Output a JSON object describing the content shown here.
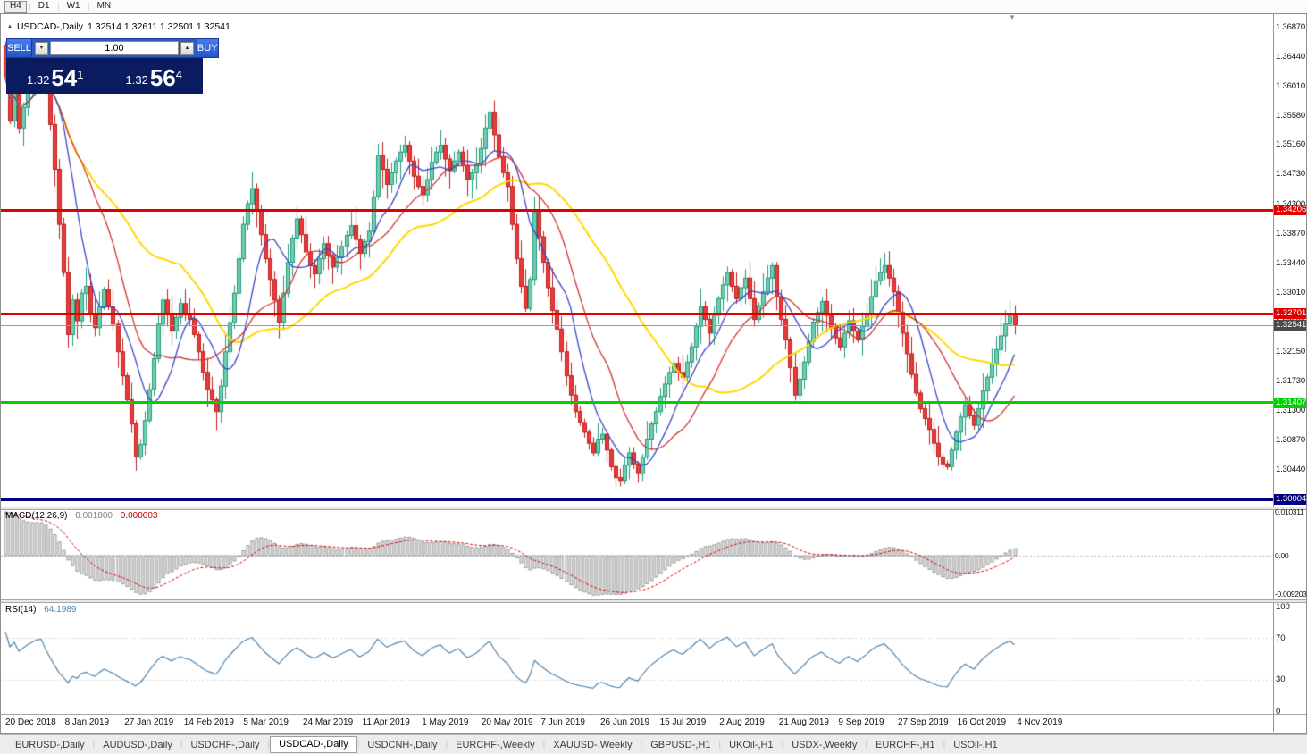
{
  "toolbar": {
    "timeframes": [
      "H4",
      "D1",
      "W1",
      "MN"
    ],
    "active": "H4"
  },
  "window": {
    "title_symbol": "USDCAD-,Daily",
    "ohlc_text": "1.32514 1.32611 1.32501 1.32541"
  },
  "icons": {
    "collapse_triangle": "▲",
    "shift_marker": "▼",
    "volume_down": "▼",
    "volume_up": "▲"
  },
  "trade_panel": {
    "sell_label": "SELL",
    "buy_label": "BUY",
    "volume": "1.00",
    "bid_big": "1.32",
    "bid_mid": "54",
    "bid_sup": "1",
    "ask_big": "1.32",
    "ask_mid": "56",
    "ask_sup": "4"
  },
  "price_axis": {
    "labels": [
      "1.36870",
      "1.36440",
      "1.36010",
      "1.35580",
      "1.35160",
      "1.34730",
      "1.34300",
      "1.33870",
      "1.33440",
      "1.33010",
      "1.32580",
      "1.32150",
      "1.31730",
      "1.31300",
      "1.30870",
      "1.30440"
    ]
  },
  "macd_panel": {
    "name": "MACD(12,26,9)",
    "value_main": "0.001800",
    "value_signal": "0.000003",
    "axis": [
      "0.010311",
      "0.00",
      "-0.009203"
    ]
  },
  "rsi_panel": {
    "name": "RSI(14)",
    "value": "64.1989",
    "axis": [
      "100",
      "70",
      "30",
      "0"
    ]
  },
  "time_axis": {
    "labels": [
      "20 Dec 2018",
      "8 Jan 2019",
      "27 Jan 2019",
      "14 Feb 2019",
      "5 Mar 2019",
      "24 Mar 2019",
      "11 Apr 2019",
      "1 May 2019",
      "20 May 2019",
      "7 Jun 2019",
      "26 Jun 2019",
      "15 Jul 2019",
      "2 Aug 2019",
      "21 Aug 2019",
      "9 Sep 2019",
      "27 Sep 2019",
      "16 Oct 2019",
      "4 Nov 2019"
    ]
  },
  "tabs": {
    "items": [
      "EURUSD-,Daily",
      "AUDUSD-,Daily",
      "USDCHF-,Daily",
      "USDCAD-,Daily",
      "USDCNH-,Daily",
      "EURCHF-,Weekly",
      "XAUUSD-,Weekly",
      "GBPUSD-,H1",
      "UKOil-,H1",
      "USDX-,Weekly",
      "EURCHF-,H1",
      "USOil-,H1"
    ],
    "active": "USDCAD-,Daily"
  },
  "chart_data": {
    "type": "candlestick",
    "symbol": "USDCAD",
    "timeframe": "Daily",
    "current_bar": {
      "open": 1.32514,
      "high": 1.32611,
      "low": 1.32501,
      "close": 1.32541
    },
    "bid": 1.32541,
    "ask": 1.32564,
    "axis_top_price": 1.3687,
    "ylim": [
      1.297,
      1.3687
    ],
    "candle_count": 226,
    "first_open": 1.366,
    "price_path": [
      [
        0,
        1.3615
      ],
      [
        1,
        1.355
      ],
      [
        2,
        1.359
      ],
      [
        3,
        1.354
      ],
      [
        5,
        1.36
      ],
      [
        7,
        1.365
      ],
      [
        8,
        1.3655
      ],
      [
        9,
        1.36
      ],
      [
        10,
        1.3545
      ],
      [
        11,
        1.348
      ],
      [
        12,
        1.34
      ],
      [
        13,
        1.333
      ],
      [
        14,
        1.324
      ],
      [
        15,
        1.329
      ],
      [
        16,
        1.326
      ],
      [
        17,
        1.33
      ],
      [
        18,
        1.331
      ],
      [
        19,
        1.327
      ],
      [
        20,
        1.325
      ],
      [
        21,
        1.328
      ],
      [
        22,
        1.3305
      ],
      [
        23,
        1.328
      ],
      [
        24,
        1.3255
      ],
      [
        25,
        1.3215
      ],
      [
        26,
        1.318
      ],
      [
        27,
        1.3145
      ],
      [
        28,
        1.311
      ],
      [
        29,
        1.3062
      ],
      [
        30,
        1.308
      ],
      [
        31,
        1.3115
      ],
      [
        32,
        1.316
      ],
      [
        33,
        1.3205
      ],
      [
        34,
        1.3255
      ],
      [
        35,
        1.329
      ],
      [
        36,
        1.327
      ],
      [
        37,
        1.3245
      ],
      [
        38,
        1.3265
      ],
      [
        39,
        1.3285
      ],
      [
        40,
        1.327
      ],
      [
        41,
        1.3262
      ],
      [
        42,
        1.324
      ],
      [
        43,
        1.3215
      ],
      [
        44,
        1.3185
      ],
      [
        45,
        1.316
      ],
      [
        46,
        1.3145
      ],
      [
        47,
        1.3128
      ],
      [
        48,
        1.3165
      ],
      [
        49,
        1.3215
      ],
      [
        51,
        1.33
      ],
      [
        53,
        1.34
      ],
      [
        54,
        1.343
      ],
      [
        55,
        1.3452
      ],
      [
        56,
        1.342
      ],
      [
        57,
        1.3385
      ],
      [
        58,
        1.335
      ],
      [
        59,
        1.332
      ],
      [
        60,
        1.329
      ],
      [
        61,
        1.3258
      ],
      [
        62,
        1.33
      ],
      [
        63,
        1.3345
      ],
      [
        64,
        1.338
      ],
      [
        65,
        1.3408
      ],
      [
        66,
        1.3385
      ],
      [
        67,
        1.336
      ],
      [
        68,
        1.334
      ],
      [
        69,
        1.3328
      ],
      [
        70,
        1.335
      ],
      [
        71,
        1.3372
      ],
      [
        72,
        1.3355
      ],
      [
        73,
        1.3338
      ],
      [
        74,
        1.3352
      ],
      [
        75,
        1.3368
      ],
      [
        76,
        1.3384
      ],
      [
        77,
        1.3398
      ],
      [
        78,
        1.3378
      ],
      [
        79,
        1.3358
      ],
      [
        80,
        1.3375
      ],
      [
        81,
        1.339
      ],
      [
        82,
        1.344
      ],
      [
        83,
        1.35
      ],
      [
        84,
        1.348
      ],
      [
        85,
        1.3458
      ],
      [
        86,
        1.3475
      ],
      [
        87,
        1.3492
      ],
      [
        88,
        1.3505
      ],
      [
        89,
        1.3515
      ],
      [
        90,
        1.3492
      ],
      [
        91,
        1.347
      ],
      [
        92,
        1.3455
      ],
      [
        93,
        1.3443
      ],
      [
        94,
        1.3465
      ],
      [
        95,
        1.349
      ],
      [
        96,
        1.3505
      ],
      [
        97,
        1.3515
      ],
      [
        98,
        1.3495
      ],
      [
        99,
        1.3478
      ],
      [
        100,
        1.3492
      ],
      [
        101,
        1.3505
      ],
      [
        102,
        1.3485
      ],
      [
        103,
        1.3465
      ],
      [
        104,
        1.3475
      ],
      [
        105,
        1.3487
      ],
      [
        106,
        1.351
      ],
      [
        107,
        1.354
      ],
      [
        108,
        1.3563
      ],
      [
        109,
        1.353
      ],
      [
        110,
        1.3498
      ],
      [
        111,
        1.3475
      ],
      [
        112,
        1.3455
      ],
      [
        113,
        1.34
      ],
      [
        114,
        1.335
      ],
      [
        115,
        1.331
      ],
      [
        116,
        1.3278
      ],
      [
        117,
        1.332
      ],
      [
        118,
        1.3418
      ],
      [
        119,
        1.3382
      ],
      [
        120,
        1.3345
      ],
      [
        121,
        1.3308
      ],
      [
        122,
        1.3275
      ],
      [
        123,
        1.3248
      ],
      [
        124,
        1.3215
      ],
      [
        125,
        1.318
      ],
      [
        126,
        1.3152
      ],
      [
        127,
        1.3128
      ],
      [
        128,
        1.3112
      ],
      [
        129,
        1.3098
      ],
      [
        130,
        1.3082
      ],
      [
        131,
        1.3068
      ],
      [
        132,
        1.3088
      ],
      [
        133,
        1.3095
      ],
      [
        134,
        1.3072
      ],
      [
        135,
        1.3048
      ],
      [
        136,
        1.3032
      ],
      [
        137,
        1.3028
      ],
      [
        138,
        1.305
      ],
      [
        139,
        1.3068
      ],
      [
        140,
        1.3052
      ],
      [
        141,
        1.3038
      ],
      [
        142,
        1.3062
      ],
      [
        143,
        1.3088
      ],
      [
        144,
        1.311
      ],
      [
        145,
        1.3128
      ],
      [
        146,
        1.315
      ],
      [
        147,
        1.3168
      ],
      [
        148,
        1.3185
      ],
      [
        149,
        1.3198
      ],
      [
        150,
        1.3185
      ],
      [
        151,
        1.3178
      ],
      [
        152,
        1.32
      ],
      [
        153,
        1.3222
      ],
      [
        154,
        1.3252
      ],
      [
        155,
        1.328
      ],
      [
        156,
        1.3262
      ],
      [
        157,
        1.3242
      ],
      [
        158,
        1.3268
      ],
      [
        159,
        1.3292
      ],
      [
        160,
        1.3312
      ],
      [
        161,
        1.333
      ],
      [
        162,
        1.331
      ],
      [
        163,
        1.3292
      ],
      [
        164,
        1.3308
      ],
      [
        165,
        1.3322
      ],
      [
        166,
        1.3292
      ],
      [
        167,
        1.3262
      ],
      [
        168,
        1.3282
      ],
      [
        169,
        1.3302
      ],
      [
        170,
        1.3322
      ],
      [
        171,
        1.334
      ],
      [
        172,
        1.3295
      ],
      [
        173,
        1.3262
      ],
      [
        174,
        1.3232
      ],
      [
        175,
        1.3192
      ],
      [
        176,
        1.3152
      ],
      [
        177,
        1.3175
      ],
      [
        178,
        1.32
      ],
      [
        179,
        1.323
      ],
      [
        180,
        1.3258
      ],
      [
        181,
        1.3272
      ],
      [
        182,
        1.3288
      ],
      [
        183,
        1.3268
      ],
      [
        184,
        1.325
      ],
      [
        185,
        1.3235
      ],
      [
        186,
        1.3222
      ],
      [
        187,
        1.3242
      ],
      [
        188,
        1.326
      ],
      [
        189,
        1.3245
      ],
      [
        190,
        1.3232
      ],
      [
        191,
        1.3252
      ],
      [
        192,
        1.327
      ],
      [
        193,
        1.3295
      ],
      [
        194,
        1.3318
      ],
      [
        195,
        1.333
      ],
      [
        196,
        1.334
      ],
      [
        197,
        1.3322
      ],
      [
        198,
        1.3302
      ],
      [
        199,
        1.3272
      ],
      [
        200,
        1.3242
      ],
      [
        201,
        1.3212
      ],
      [
        202,
        1.3182
      ],
      [
        203,
        1.3155
      ],
      [
        204,
        1.3132
      ],
      [
        205,
        1.3118
      ],
      [
        206,
        1.3102
      ],
      [
        207,
        1.3082
      ],
      [
        208,
        1.3062
      ],
      [
        209,
        1.3052
      ],
      [
        210,
        1.3048
      ],
      [
        211,
        1.3072
      ],
      [
        212,
        1.3098
      ],
      [
        213,
        1.312
      ],
      [
        214,
        1.3138
      ],
      [
        215,
        1.3122
      ],
      [
        216,
        1.3108
      ],
      [
        217,
        1.3132
      ],
      [
        218,
        1.3158
      ],
      [
        219,
        1.3178
      ],
      [
        220,
        1.3198
      ],
      [
        221,
        1.3218
      ],
      [
        222,
        1.3238
      ],
      [
        223,
        1.3255
      ],
      [
        224,
        1.3268
      ],
      [
        225,
        1.32541
      ]
    ],
    "hlines": [
      {
        "price": 1.34206,
        "label": "1.34206",
        "color": "#e00000",
        "width": 3
      },
      {
        "price": 1.32701,
        "label": "1.32701",
        "color": "#e00000",
        "width": 3
      },
      {
        "price": 1.31407,
        "label": "1.31407",
        "color": "#00d000",
        "width": 3
      },
      {
        "price": 1.30004,
        "label": "1.30004",
        "color": "#000080",
        "width": 4
      }
    ],
    "current_price": {
      "value": 1.32541,
      "label": "1.32541"
    },
    "colors": {
      "bull_fill": "#6fcdb2",
      "bull_stroke": "#27997b",
      "bear_fill": "#ea3b3b",
      "bear_stroke": "#c01f1f"
    },
    "indicators": {
      "ma": [
        {
          "period": 40,
          "color": "#ffd800",
          "width": 2
        },
        {
          "period": 18,
          "color": "#d23434",
          "width": 1.3
        },
        {
          "period": 9,
          "color": "#3c46c8",
          "width": 1.3
        }
      ],
      "macd": {
        "fast": 12,
        "slow": 26,
        "signal": 9,
        "current_main": 0.0018,
        "current_signal": 3e-06,
        "range": [
          -0.009203,
          0.010311
        ],
        "seed_ema12": 1.356,
        "seed_ema26": 1.3448,
        "seed_signal": 0.01,
        "hist_fill": "#e6e6e6",
        "hist_stroke": "#9a9a9a",
        "signal_color": "#d40000"
      },
      "rsi": {
        "period": 14,
        "current": 64.1989,
        "levels": [
          30,
          70
        ],
        "color": "#4f86b0",
        "seed_gain": 0.0016,
        "seed_loss": 0.0005
      }
    }
  }
}
